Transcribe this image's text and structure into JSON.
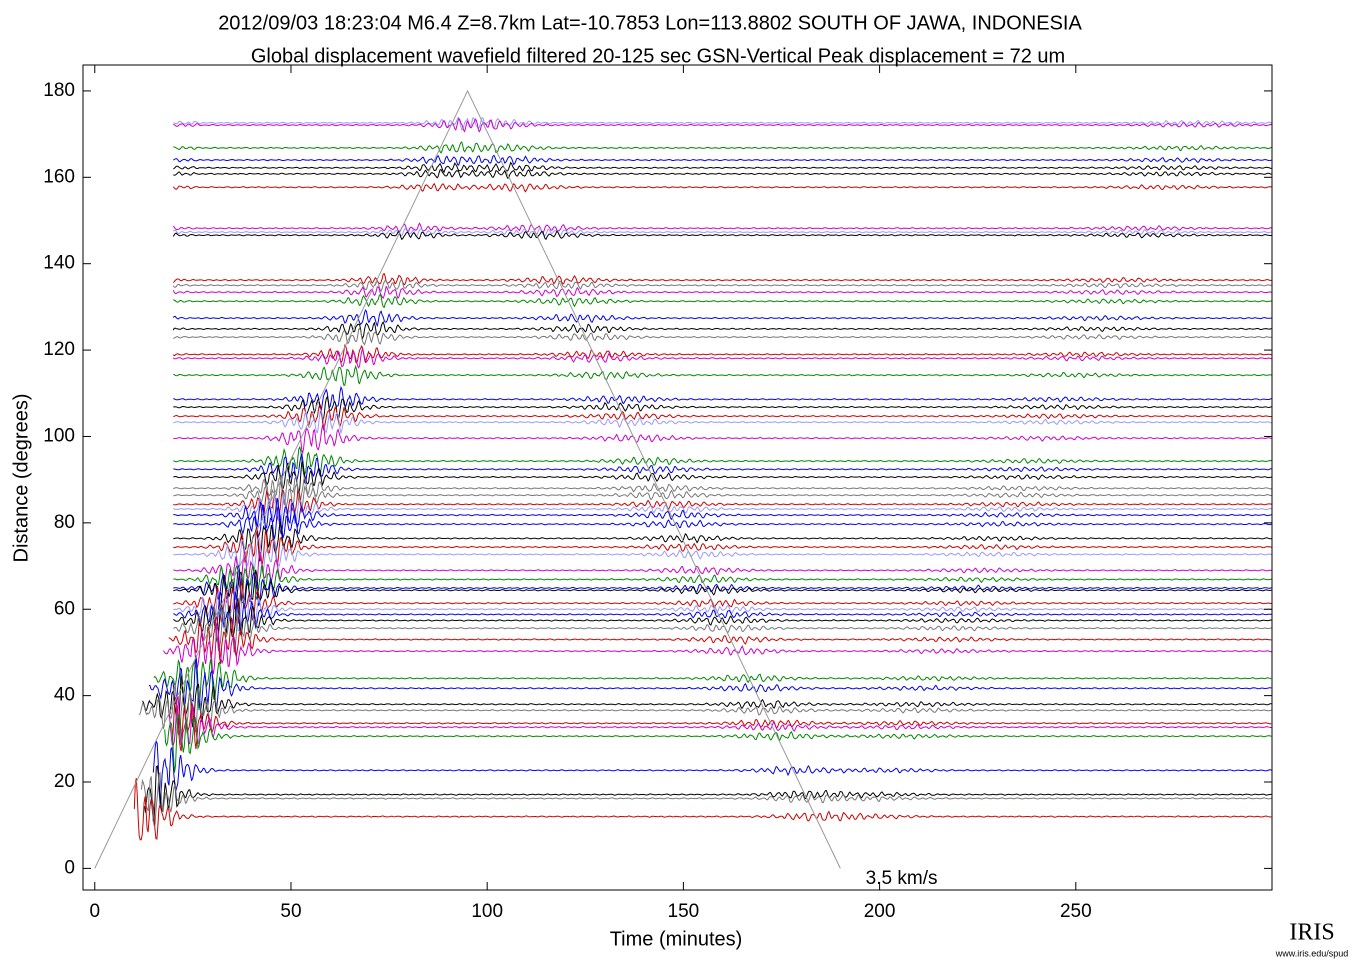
{
  "chart_data": {
    "type": "record-section",
    "title": "2012/09/03  18:23:04  M6.4  Z=8.7km  Lat=-10.7853 Lon=113.8802  SOUTH OF JAWA, INDONESIA",
    "subtitle": "Global displacement wavefield     filtered 20-125 sec     GSN-Vertical     Peak displacement =  72 um",
    "x_label": "Time (minutes)",
    "y_label": "Distance (degrees)",
    "xlim": [
      -3,
      300
    ],
    "ylim": [
      -5,
      186
    ],
    "xticks": [
      0,
      50,
      100,
      150,
      200,
      250
    ],
    "yticks": [
      0,
      20,
      40,
      60,
      80,
      100,
      120,
      140,
      160,
      180
    ],
    "grid": false,
    "reference_line": {
      "label": "3.5 km/s",
      "x": [
        0,
        95,
        190
      ],
      "y": [
        0,
        180,
        0
      ],
      "color": "#999999"
    },
    "traces": [
      {
        "distance": 172.6,
        "color": "#9999ff"
      },
      {
        "distance": 172.1,
        "color": "#cc00cc"
      },
      {
        "distance": 166.8,
        "color": "#008800"
      },
      {
        "distance": 164,
        "color": "#0000ee"
      },
      {
        "distance": 162.2,
        "color": "#000000"
      },
      {
        "distance": 160.8,
        "color": "#000000"
      },
      {
        "distance": 157.7,
        "color": "#cc0000"
      },
      {
        "distance": 148.2,
        "color": "#cc00cc"
      },
      {
        "distance": 147.3,
        "color": "#9999ff"
      },
      {
        "distance": 146.6,
        "color": "#000000"
      },
      {
        "distance": 136.2,
        "color": "#cc0000"
      },
      {
        "distance": 135,
        "color": "#777777"
      },
      {
        "distance": 133.4,
        "color": "#cc00cc"
      },
      {
        "distance": 131.3,
        "color": "#008800"
      },
      {
        "distance": 127.4,
        "color": "#0000ee"
      },
      {
        "distance": 124.9,
        "color": "#000000"
      },
      {
        "distance": 123,
        "color": "#777777"
      },
      {
        "distance": 119,
        "color": "#cc0000"
      },
      {
        "distance": 118.1,
        "color": "#cc00cc"
      },
      {
        "distance": 114.2,
        "color": "#008800"
      },
      {
        "distance": 108.6,
        "color": "#0000ee"
      },
      {
        "distance": 106.8,
        "color": "#000000"
      },
      {
        "distance": 104.7,
        "color": "#cc0000"
      },
      {
        "distance": 103.3,
        "color": "#9999ff"
      },
      {
        "distance": 99.6,
        "color": "#cc00cc"
      },
      {
        "distance": 94.3,
        "color": "#008800"
      },
      {
        "distance": 92.4,
        "color": "#0000ee"
      },
      {
        "distance": 90.6,
        "color": "#000000"
      },
      {
        "distance": 88,
        "color": "#777777"
      },
      {
        "distance": 86.4,
        "color": "#777777"
      },
      {
        "distance": 84.3,
        "color": "#cc0000"
      },
      {
        "distance": 83.2,
        "color": "#9999ff"
      },
      {
        "distance": 81.8,
        "color": "#0000ee"
      },
      {
        "distance": 79.7,
        "color": "#0000ee"
      },
      {
        "distance": 76.4,
        "color": "#000000"
      },
      {
        "distance": 74.4,
        "color": "#cc0000"
      },
      {
        "distance": 72.7,
        "color": "#9999ff"
      },
      {
        "distance": 69,
        "color": "#cc00cc"
      },
      {
        "distance": 66.9,
        "color": "#008800"
      },
      {
        "distance": 64.9,
        "color": "#0000ee"
      },
      {
        "distance": 64.4,
        "color": "#000000"
      },
      {
        "distance": 61.4,
        "color": "#cc0000"
      },
      {
        "distance": 60,
        "color": "#9999ff"
      },
      {
        "distance": 58.8,
        "color": "#0000ee"
      },
      {
        "distance": 57.4,
        "color": "#000000"
      },
      {
        "distance": 55.6,
        "color": "#777777"
      },
      {
        "distance": 53,
        "color": "#cc0000"
      },
      {
        "distance": 50.3,
        "color": "#cc00cc"
      },
      {
        "distance": 44,
        "color": "#008800"
      },
      {
        "distance": 41.7,
        "color": "#0000ee"
      },
      {
        "distance": 38,
        "color": "#000000"
      },
      {
        "distance": 36.6,
        "color": "#777777"
      },
      {
        "distance": 33.6,
        "color": "#cc0000"
      },
      {
        "distance": 32.7,
        "color": "#cc00cc"
      },
      {
        "distance": 30.6,
        "color": "#008800"
      },
      {
        "distance": 22.7,
        "color": "#0000ee"
      },
      {
        "distance": 17.1,
        "color": "#000000"
      },
      {
        "distance": 16.2,
        "color": "#777777"
      },
      {
        "distance": 12,
        "color": "#cc0000"
      }
    ]
  },
  "logo": {
    "text": "IRIS",
    "url": "www.iris.edu/spud"
  }
}
